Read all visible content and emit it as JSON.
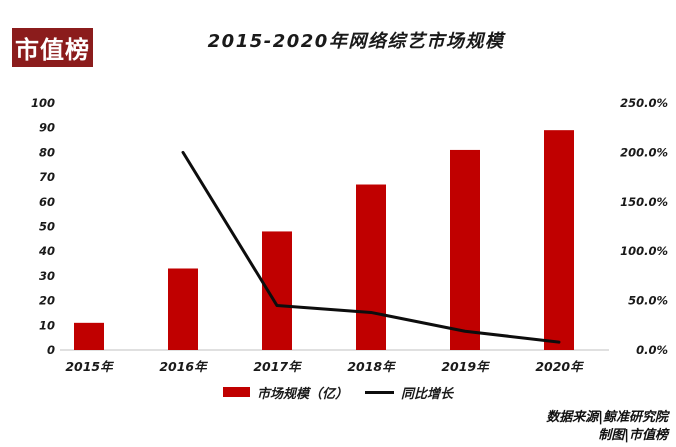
{
  "logo": {
    "text": "市值榜"
  },
  "title": "2015-2020年网络综艺市场规模",
  "legend": {
    "bar_label": "市场规模（亿）",
    "line_label": "同比增长"
  },
  "footer": {
    "source": "数据来源|鲸准研究院",
    "credit": "制图|市值榜"
  },
  "colors": {
    "bar": "#c00000",
    "line": "#0d0d0d",
    "logo_bg": "#8b1c1c",
    "logo_text": "#ffffff",
    "text": "#1a1a1a",
    "baseline": "#e0e0e0"
  },
  "chart_data": {
    "type": "bar",
    "title": "2015-2020年网络综艺市场规模",
    "categories": [
      "2015年",
      "2016年",
      "2017年",
      "2018年",
      "2019年",
      "2020年"
    ],
    "series": [
      {
        "name": "市场规模（亿）",
        "type": "bar",
        "axis": "left",
        "values": [
          11,
          33,
          48,
          67,
          81,
          89
        ]
      },
      {
        "name": "同比增长",
        "type": "line",
        "axis": "right",
        "unit": "%",
        "values": [
          null,
          200.0,
          45.0,
          38.0,
          19.0,
          8.0
        ]
      }
    ],
    "left_axis": {
      "min": 0,
      "max": 100,
      "step": 10,
      "ticks": [
        "0",
        "10",
        "20",
        "30",
        "40",
        "50",
        "60",
        "70",
        "80",
        "90",
        "100"
      ]
    },
    "right_axis": {
      "min": 0,
      "max": 250,
      "step": 50,
      "ticks": [
        "0.0%",
        "50.0%",
        "100.0%",
        "150.0%",
        "200.0%",
        "250.0%"
      ]
    },
    "grid": false,
    "legend_position": "bottom"
  }
}
